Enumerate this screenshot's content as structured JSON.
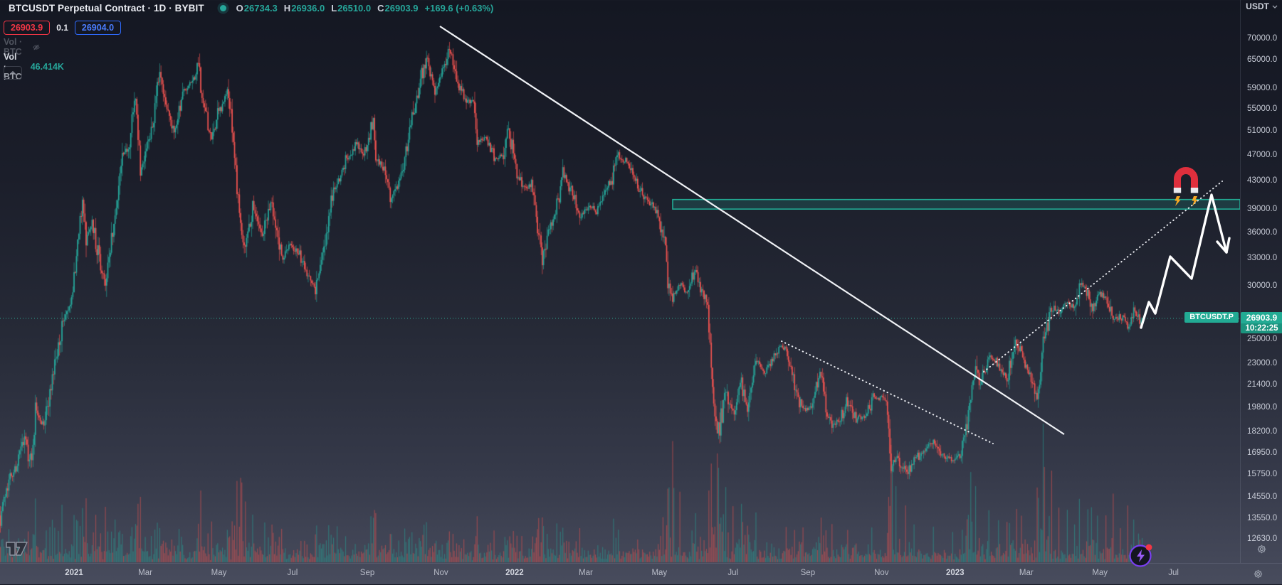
{
  "header": {
    "title": "BTCUSDT Perpetual Contract · 1D · BYBIT",
    "ohlc": [
      {
        "label": "O",
        "value": "26734.3"
      },
      {
        "label": "H",
        "value": "26936.0"
      },
      {
        "label": "L",
        "value": "26510.0"
      },
      {
        "label": "C",
        "value": "26903.9"
      }
    ],
    "change": "+169.6 (+0.63%)",
    "sell_button": "26903.9",
    "spread": "0.1",
    "buy_button": "26904.0",
    "hidden_indicator_label": "Vol · BTC",
    "volume_indicator_label": "Vol · BTC",
    "volume_value": "46.414K"
  },
  "price_axis": {
    "currency": "USDT",
    "ticks": [
      "70000.0",
      "65000.0",
      "59000.0",
      "55000.0",
      "51000.0",
      "47000.0",
      "43000.0",
      "39000.0",
      "36000.0",
      "33000.0",
      "30000.0",
      "25000.0",
      "23000.0",
      "21400.0",
      "19800.0",
      "18200.0",
      "16950.0",
      "15750.0",
      "14550.0",
      "13550.0",
      "12630.0"
    ]
  },
  "time_axis": {
    "labels": [
      {
        "text": "2021",
        "day": 61,
        "year": true
      },
      {
        "text": "Mar",
        "day": 120,
        "year": false
      },
      {
        "text": "May",
        "day": 181,
        "year": false
      },
      {
        "text": "Jul",
        "day": 242,
        "year": false
      },
      {
        "text": "Sep",
        "day": 304,
        "year": false
      },
      {
        "text": "Nov",
        "day": 365,
        "year": false
      },
      {
        "text": "2022",
        "day": 426,
        "year": true
      },
      {
        "text": "Mar",
        "day": 485,
        "year": false
      },
      {
        "text": "May",
        "day": 546,
        "year": false
      },
      {
        "text": "Jul",
        "day": 607,
        "year": false
      },
      {
        "text": "Sep",
        "day": 669,
        "year": false
      },
      {
        "text": "Nov",
        "day": 730,
        "year": false
      },
      {
        "text": "2023",
        "day": 791,
        "year": true
      },
      {
        "text": "Mar",
        "day": 850,
        "year": false
      },
      {
        "text": "May",
        "day": 911,
        "year": false
      },
      {
        "text": "Jul",
        "day": 972,
        "year": false
      }
    ]
  },
  "last_price_tag": {
    "symbol": "BTCUSDT.P",
    "price": "26903.9",
    "countdown": "10:22:25"
  },
  "chart_data": {
    "type": "candlestick",
    "symbol": "BTCUSDT",
    "instrument": "Perpetual Contract",
    "exchange": "BYBIT",
    "interval": "1D",
    "price_scale": "log",
    "currency": "USDT",
    "last_candle": {
      "open": 26734.3,
      "high": 26936.0,
      "low": 26510.0,
      "close": 26903.9,
      "change": 169.6,
      "change_pct": 0.63
    },
    "last_volume": "46.414K",
    "up_color": "#26a69a",
    "down_color": "#ef5350",
    "ylim": [
      12630.0,
      70000.0
    ],
    "days_visible": 947,
    "price_keyframes": [
      [
        0,
        13700
      ],
      [
        7,
        15500
      ],
      [
        14,
        16300
      ],
      [
        20,
        17800
      ],
      [
        26,
        16300
      ],
      [
        29,
        19600
      ],
      [
        36,
        18800
      ],
      [
        46,
        23300
      ],
      [
        52,
        26400
      ],
      [
        60,
        28900
      ],
      [
        63,
        33000
      ],
      [
        68,
        40500
      ],
      [
        71,
        35500
      ],
      [
        76,
        37300
      ],
      [
        83,
        32100
      ],
      [
        87,
        30400
      ],
      [
        95,
        38300
      ],
      [
        101,
        46300
      ],
      [
        106,
        48700
      ],
      [
        112,
        57400
      ],
      [
        116,
        45100
      ],
      [
        122,
        48400
      ],
      [
        128,
        54900
      ],
      [
        132,
        61200
      ],
      [
        137,
        55600
      ],
      [
        144,
        51300
      ],
      [
        151,
        58000
      ],
      [
        158,
        59800
      ],
      [
        164,
        63500
      ],
      [
        168,
        55700
      ],
      [
        175,
        49100
      ],
      [
        180,
        54000
      ],
      [
        188,
        58800
      ],
      [
        193,
        49500
      ],
      [
        199,
        36700
      ],
      [
        203,
        34700
      ],
      [
        209,
        39200
      ],
      [
        217,
        35800
      ],
      [
        225,
        40500
      ],
      [
        233,
        32500
      ],
      [
        240,
        34700
      ],
      [
        247,
        33500
      ],
      [
        254,
        31500
      ],
      [
        261,
        29800
      ],
      [
        268,
        34300
      ],
      [
        274,
        40000
      ],
      [
        279,
        42800
      ],
      [
        286,
        46000
      ],
      [
        295,
        49300
      ],
      [
        301,
        47100
      ],
      [
        309,
        52700
      ],
      [
        311,
        46800
      ],
      [
        317,
        44900
      ],
      [
        324,
        40700
      ],
      [
        331,
        43600
      ],
      [
        337,
        48200
      ],
      [
        342,
        54700
      ],
      [
        349,
        62000
      ],
      [
        353,
        66000
      ],
      [
        360,
        58500
      ],
      [
        365,
        61300
      ],
      [
        372,
        67500
      ],
      [
        374,
        66900
      ],
      [
        379,
        60100
      ],
      [
        386,
        56300
      ],
      [
        392,
        57300
      ],
      [
        395,
        49400
      ],
      [
        402,
        50100
      ],
      [
        409,
        46700
      ],
      [
        416,
        46900
      ],
      [
        421,
        50700
      ],
      [
        426,
        46200
      ],
      [
        433,
        41600
      ],
      [
        440,
        43100
      ],
      [
        446,
        36400
      ],
      [
        449,
        33000
      ],
      [
        455,
        37000
      ],
      [
        460,
        38700
      ],
      [
        466,
        44500
      ],
      [
        471,
        42400
      ],
      [
        480,
        38300
      ],
      [
        487,
        39400
      ],
      [
        494,
        38800
      ],
      [
        500,
        41000
      ],
      [
        506,
        42900
      ],
      [
        512,
        47100
      ],
      [
        519,
        45800
      ],
      [
        526,
        43200
      ],
      [
        533,
        40500
      ],
      [
        540,
        39700
      ],
      [
        545,
        38600
      ],
      [
        549,
        36000
      ],
      [
        554,
        30100
      ],
      [
        557,
        29000
      ],
      [
        563,
        30300
      ],
      [
        569,
        29400
      ],
      [
        576,
        31800
      ],
      [
        581,
        29900
      ],
      [
        586,
        28400
      ],
      [
        589,
        22500
      ],
      [
        594,
        17800
      ],
      [
        601,
        21100
      ],
      [
        607,
        19300
      ],
      [
        614,
        21600
      ],
      [
        619,
        19900
      ],
      [
        626,
        23200
      ],
      [
        633,
        22500
      ],
      [
        640,
        23300
      ],
      [
        647,
        24400
      ],
      [
        651,
        24300
      ],
      [
        658,
        21300
      ],
      [
        665,
        19600
      ],
      [
        672,
        19800
      ],
      [
        680,
        22400
      ],
      [
        684,
        19700
      ],
      [
        689,
        18500
      ],
      [
        696,
        19100
      ],
      [
        702,
        20300
      ],
      [
        709,
        19100
      ],
      [
        716,
        19200
      ],
      [
        723,
        20500
      ],
      [
        730,
        20500
      ],
      [
        734,
        20200
      ],
      [
        736,
        18500
      ],
      [
        738,
        15900
      ],
      [
        742,
        16800
      ],
      [
        750,
        15800
      ],
      [
        757,
        16500
      ],
      [
        764,
        17100
      ],
      [
        773,
        17800
      ],
      [
        780,
        16800
      ],
      [
        789,
        16500
      ],
      [
        795,
        16900
      ],
      [
        801,
        18900
      ],
      [
        804,
        20900
      ],
      [
        808,
        22700
      ],
      [
        811,
        21100
      ],
      [
        819,
        23700
      ],
      [
        827,
        23000
      ],
      [
        834,
        21800
      ],
      [
        842,
        24800
      ],
      [
        846,
        23500
      ],
      [
        852,
        22400
      ],
      [
        859,
        20200
      ],
      [
        864,
        24700
      ],
      [
        871,
        28100
      ],
      [
        877,
        27300
      ],
      [
        884,
        28400
      ],
      [
        890,
        28000
      ],
      [
        894,
        30400
      ],
      [
        901,
        29300
      ],
      [
        904,
        27500
      ],
      [
        909,
        29200
      ],
      [
        916,
        28900
      ],
      [
        922,
        26800
      ],
      [
        928,
        27100
      ],
      [
        934,
        26300
      ],
      [
        939,
        27700
      ],
      [
        943,
        27200
      ],
      [
        945,
        26734.3
      ],
      [
        946,
        26903.9
      ]
    ],
    "volume_spikes": [
      [
        63,
        60
      ],
      [
        68,
        85
      ],
      [
        71,
        80
      ],
      [
        87,
        70
      ],
      [
        95,
        55
      ],
      [
        112,
        60
      ],
      [
        116,
        70
      ],
      [
        132,
        55
      ],
      [
        164,
        60
      ],
      [
        175,
        65
      ],
      [
        188,
        50
      ],
      [
        199,
        130
      ],
      [
        200,
        100
      ],
      [
        203,
        80
      ],
      [
        219,
        55
      ],
      [
        225,
        50
      ],
      [
        233,
        45
      ],
      [
        261,
        40
      ],
      [
        279,
        45
      ],
      [
        309,
        55
      ],
      [
        311,
        60
      ],
      [
        324,
        45
      ],
      [
        353,
        55
      ],
      [
        372,
        50
      ],
      [
        395,
        65
      ],
      [
        446,
        60
      ],
      [
        449,
        55
      ],
      [
        466,
        50
      ],
      [
        480,
        45
      ],
      [
        512,
        45
      ],
      [
        549,
        60
      ],
      [
        554,
        110
      ],
      [
        557,
        150
      ],
      [
        558,
        120
      ],
      [
        563,
        90
      ],
      [
        576,
        70
      ],
      [
        589,
        140
      ],
      [
        594,
        170
      ],
      [
        595,
        130
      ],
      [
        601,
        100
      ],
      [
        607,
        70
      ],
      [
        614,
        75
      ],
      [
        619,
        60
      ],
      [
        626,
        70
      ],
      [
        651,
        55
      ],
      [
        665,
        50
      ],
      [
        680,
        60
      ],
      [
        689,
        55
      ],
      [
        702,
        45
      ],
      [
        736,
        100
      ],
      [
        738,
        170
      ],
      [
        739,
        140
      ],
      [
        742,
        110
      ],
      [
        750,
        80
      ],
      [
        757,
        60
      ],
      [
        773,
        50
      ],
      [
        789,
        40
      ],
      [
        801,
        70
      ],
      [
        804,
        115
      ],
      [
        808,
        95
      ],
      [
        819,
        80
      ],
      [
        827,
        60
      ],
      [
        834,
        55
      ],
      [
        842,
        75
      ],
      [
        846,
        60
      ],
      [
        859,
        100
      ],
      [
        860,
        80
      ],
      [
        864,
        190
      ],
      [
        865,
        120
      ],
      [
        871,
        130
      ],
      [
        877,
        80
      ],
      [
        884,
        85
      ],
      [
        890,
        60
      ],
      [
        894,
        95
      ],
      [
        901,
        70
      ],
      [
        904,
        85
      ],
      [
        909,
        60
      ],
      [
        916,
        65
      ],
      [
        922,
        95
      ],
      [
        928,
        55
      ],
      [
        934,
        70
      ],
      [
        939,
        55
      ],
      [
        943,
        45
      ],
      [
        946,
        40
      ]
    ],
    "supply_zone": {
      "price_top": 40400,
      "price_bottom": 39100,
      "start_day": 557,
      "color": "#22ab94"
    },
    "drawings": {
      "trendline_major": {
        "from": [
          618,
          37
        ],
        "to": [
          1495,
          611
        ],
        "style": "solid",
        "color": "#f0f2f6"
      },
      "trendline_dotted_down": {
        "from": [
          1098,
          480
        ],
        "to": [
          1395,
          624
        ],
        "style": "dotted",
        "color": "#e9ebf0"
      },
      "trendline_dotted_up": {
        "from": [
          1382,
          523
        ],
        "to": [
          1717,
          255
        ],
        "style": "dotted",
        "color": "#e9ebf0"
      },
      "projection_zigzag": {
        "points": [
          [
            1603,
            461
          ],
          [
            1614,
            425
          ],
          [
            1623,
            441
          ],
          [
            1644,
            361
          ],
          [
            1674,
            392
          ],
          [
            1702,
            274
          ],
          [
            1723,
            355
          ]
        ],
        "arrow_wings": [
          [
            1710,
            340
          ],
          [
            1727,
            335
          ]
        ],
        "color": "#ffffff"
      },
      "magnet": {
        "center": [
          1666,
          256
        ],
        "glyph": "magnet-emoji"
      }
    }
  }
}
